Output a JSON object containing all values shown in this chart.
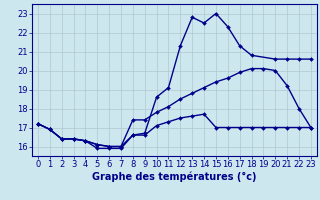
{
  "bg_color": "#cce8ee",
  "line_color": "#00008b",
  "grid_color": "#b0c8d0",
  "xlim": [
    -0.5,
    23.5
  ],
  "ylim": [
    15.5,
    23.5
  ],
  "xlabel": "Graphe des températures (°c)",
  "xticks": [
    0,
    1,
    2,
    3,
    4,
    5,
    6,
    7,
    8,
    9,
    10,
    11,
    12,
    13,
    14,
    15,
    16,
    17,
    18,
    19,
    20,
    21,
    22,
    23
  ],
  "yticks": [
    16,
    17,
    18,
    19,
    20,
    21,
    22,
    23
  ],
  "xlabel_fontsize": 7,
  "tick_fontsize": 6,
  "markersize": 2,
  "linewidth": 1.0,
  "curve_a_x": [
    0,
    1,
    2,
    3,
    4,
    5,
    6,
    7,
    8,
    9,
    10,
    11,
    12,
    13,
    14,
    15,
    16,
    17,
    18,
    20,
    21,
    22,
    23
  ],
  "curve_a_y": [
    17.2,
    16.9,
    16.4,
    16.4,
    16.3,
    15.9,
    15.9,
    15.9,
    16.6,
    16.7,
    18.6,
    19.1,
    21.3,
    22.8,
    22.5,
    23.0,
    22.3,
    21.3,
    20.8,
    20.6,
    20.6,
    20.6,
    20.6
  ],
  "curve_b_x": [
    0,
    1,
    2,
    3,
    4,
    5,
    6,
    7,
    8,
    9,
    10,
    11,
    12,
    13,
    14,
    15,
    16,
    17,
    18,
    19,
    20,
    21,
    22,
    23
  ],
  "curve_b_y": [
    17.2,
    16.9,
    16.4,
    16.4,
    16.3,
    16.1,
    16.0,
    16.0,
    17.4,
    17.4,
    17.8,
    18.1,
    18.5,
    18.8,
    19.1,
    19.4,
    19.6,
    19.9,
    20.1,
    20.1,
    20.0,
    19.2,
    18.0,
    17.0
  ],
  "curve_c_x": [
    0,
    1,
    2,
    3,
    4,
    5,
    6,
    7,
    8,
    9,
    10,
    11,
    12,
    13,
    14,
    15,
    16,
    17,
    18,
    19,
    20,
    21,
    22,
    23
  ],
  "curve_c_y": [
    17.2,
    16.9,
    16.4,
    16.4,
    16.3,
    16.1,
    16.0,
    16.0,
    16.6,
    16.6,
    17.1,
    17.3,
    17.5,
    17.6,
    17.7,
    17.0,
    17.0,
    17.0,
    17.0,
    17.0,
    17.0,
    17.0,
    17.0,
    17.0
  ]
}
